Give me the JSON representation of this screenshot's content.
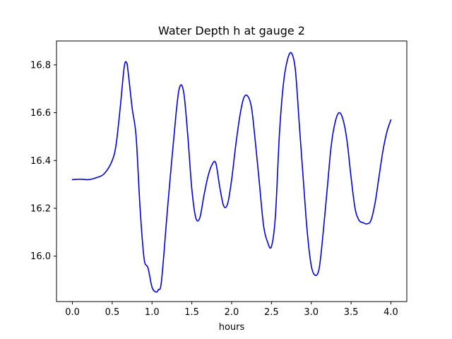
{
  "chart_data": {
    "type": "line",
    "title": "Water Depth h at gauge 2",
    "xlabel": "hours",
    "ylabel": "",
    "xlim": [
      -0.2,
      4.2
    ],
    "ylim": [
      15.81,
      16.9
    ],
    "xticks": [
      0.0,
      0.5,
      1.0,
      1.5,
      2.0,
      2.5,
      3.0,
      3.5,
      4.0
    ],
    "xtick_labels": [
      "0.0",
      "0.5",
      "1.0",
      "1.5",
      "2.0",
      "2.5",
      "3.0",
      "3.5",
      "4.0"
    ],
    "yticks": [
      16.0,
      16.2,
      16.4,
      16.6,
      16.8
    ],
    "ytick_labels": [
      "16.0",
      "16.2",
      "16.4",
      "16.6",
      "16.8"
    ],
    "grid": false,
    "series": [
      {
        "color": "#0000e0",
        "x": [
          0.0,
          0.1,
          0.2,
          0.3,
          0.4,
          0.5,
          0.55,
          0.6,
          0.65,
          0.68,
          0.7,
          0.75,
          0.8,
          0.85,
          0.9,
          0.95,
          1.0,
          1.05,
          1.08,
          1.12,
          1.2,
          1.3,
          1.35,
          1.4,
          1.45,
          1.5,
          1.55,
          1.6,
          1.65,
          1.7,
          1.75,
          1.8,
          1.85,
          1.9,
          1.95,
          2.0,
          2.05,
          2.1,
          2.15,
          2.2,
          2.25,
          2.3,
          2.35,
          2.4,
          2.45,
          2.5,
          2.55,
          2.6,
          2.65,
          2.7,
          2.75,
          2.8,
          2.85,
          2.9,
          2.95,
          3.0,
          3.05,
          3.1,
          3.15,
          3.2,
          3.25,
          3.3,
          3.35,
          3.4,
          3.45,
          3.5,
          3.55,
          3.6,
          3.65,
          3.7,
          3.75,
          3.8,
          3.85,
          3.9,
          3.95,
          4.0
        ],
        "y": [
          16.32,
          16.322,
          16.32,
          16.328,
          16.345,
          16.4,
          16.47,
          16.62,
          16.79,
          16.81,
          16.77,
          16.62,
          16.5,
          16.2,
          15.99,
          15.95,
          15.87,
          15.85,
          15.86,
          15.9,
          16.22,
          16.59,
          16.71,
          16.68,
          16.5,
          16.28,
          16.16,
          16.16,
          16.25,
          16.33,
          16.38,
          16.39,
          16.29,
          16.21,
          16.22,
          16.32,
          16.46,
          16.58,
          16.66,
          16.67,
          16.62,
          16.47,
          16.3,
          16.13,
          16.06,
          16.04,
          16.17,
          16.51,
          16.72,
          16.82,
          16.85,
          16.78,
          16.55,
          16.32,
          16.1,
          15.96,
          15.92,
          15.95,
          16.1,
          16.28,
          16.46,
          16.56,
          16.6,
          16.57,
          16.48,
          16.33,
          16.2,
          16.15,
          16.14,
          16.135,
          16.15,
          16.22,
          16.33,
          16.44,
          16.52,
          16.57
        ]
      }
    ]
  }
}
